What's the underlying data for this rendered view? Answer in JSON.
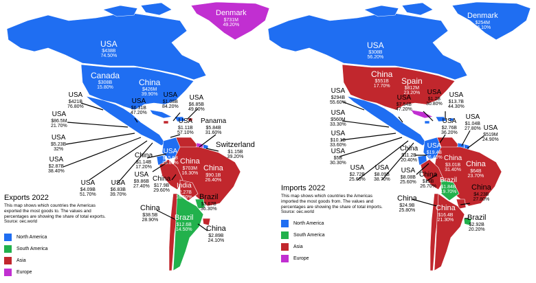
{
  "colors": {
    "north_america": "#1f6ef2",
    "south_america": "#22b14c",
    "asia": "#c1272d",
    "europe": "#c12fd1"
  },
  "exports": {
    "title": "Exports 2022",
    "description": "This map shows which countries the Americas exported the most goods to. The values and percentages are showing the share of total exports.",
    "source": "Source: oec.world",
    "labels": [
      {
        "name": "Denmark",
        "value": "$731M",
        "pct": "49.20%"
      },
      {
        "name": "USA",
        "value": "$438B",
        "pct": "74.50%"
      },
      {
        "name": "Canada",
        "value": "$308B",
        "pct": "15.80%"
      },
      {
        "name": "China",
        "value": "$426M",
        "pct": "39.90%"
      },
      {
        "name": "USA",
        "value": "$421B",
        "pct": "76.80%"
      },
      {
        "name": "USA",
        "value": "$86.5M",
        "pct": "21.70%"
      },
      {
        "name": "USA",
        "value": "$5.23B",
        "pct": "32%"
      },
      {
        "name": "USA",
        "value": "$2.87B",
        "pct": "38.40%"
      },
      {
        "name": "USA",
        "value": "$4.09B",
        "pct": "51.70%"
      },
      {
        "name": "USA",
        "value": "$6.83B",
        "pct": "39.70%"
      },
      {
        "name": "USA",
        "value": "$6.31B",
        "pct": "47.20%"
      },
      {
        "name": "USA",
        "value": "$1.08B",
        "pct": "84.20%"
      },
      {
        "name": "USA",
        "value": "$6.85B",
        "pct": "49.60%"
      },
      {
        "name": "USA",
        "value": "$1.11B",
        "pct": "57.10%"
      },
      {
        "name": "Panama",
        "value": "$5.84B",
        "pct": "31.60%"
      },
      {
        "name": "Switzerland",
        "value": "$1.15B",
        "pct": "39.20%"
      },
      {
        "name": "China",
        "value": "$1.14B",
        "pct": "17.20%"
      },
      {
        "name": "USA",
        "value": "$15.6B",
        "pct": "25.80%"
      },
      {
        "name": "China",
        "value": "$703M",
        "pct": "16.30%"
      },
      {
        "name": "China",
        "value": "$90.1B",
        "pct": "26.40%"
      },
      {
        "name": "USA",
        "value": "$9.86B",
        "pct": "27.40%"
      },
      {
        "name": "China",
        "value": "$17.9B",
        "pct": "29.60%"
      },
      {
        "name": "India",
        "value": "$2.27B",
        "pct": "16.50%"
      },
      {
        "name": "Brazil",
        "value": "$3.67B",
        "pct": "36.30%"
      },
      {
        "name": "China",
        "value": "$38.5B",
        "pct": "28.90%"
      },
      {
        "name": "Brazil",
        "value": "$12.6B",
        "pct": "14.50%"
      },
      {
        "name": "China",
        "value": "$2.89B",
        "pct": "24.10%"
      }
    ]
  },
  "imports": {
    "title": "Imports 2022",
    "description": "This map shows which countries the Americas imported the most goods from. The values and percentages are showing the share of total imports.",
    "source": "Source: oec.world",
    "labels": [
      {
        "name": "Denmark",
        "value": "$254M",
        "pct": "56.10%"
      },
      {
        "name": "USA",
        "value": "$308B",
        "pct": "56.20%"
      },
      {
        "name": "China",
        "value": "$551B",
        "pct": "17.70%"
      },
      {
        "name": "Spain",
        "value": "$812M",
        "pct": "23.20%"
      },
      {
        "name": "USA",
        "value": "$294B",
        "pct": "55.60%"
      },
      {
        "name": "USA",
        "value": "$560M",
        "pct": "33.30%"
      },
      {
        "name": "USA",
        "value": "$10.1B",
        "pct": "33.60%"
      },
      {
        "name": "USA",
        "value": "$5B",
        "pct": "30.30%"
      },
      {
        "name": "USA",
        "value": "$2.72B",
        "pct": "25.60%"
      },
      {
        "name": "USA",
        "value": "$8.09B",
        "pct": "38.70%"
      },
      {
        "name": "USA",
        "value": "$7.54B",
        "pct": "47.20%"
      },
      {
        "name": "USA",
        "value": "$1.2B",
        "pct": "30.80%"
      },
      {
        "name": "USA",
        "value": "$13.7B",
        "pct": "44.30%"
      },
      {
        "name": "USA",
        "value": "$2.76B",
        "pct": "36.20%"
      },
      {
        "name": "USA",
        "value": "$1.04B",
        "pct": "27.80%"
      },
      {
        "name": "USA",
        "value": "$519M",
        "pct": "24.90%"
      },
      {
        "name": "China",
        "value": "$11.2B",
        "pct": "20.40%"
      },
      {
        "name": "USA",
        "value": "$19.4B",
        "pct": "26.40%"
      },
      {
        "name": "China",
        "value": "$3.01B",
        "pct": "31.40%"
      },
      {
        "name": "China",
        "value": "$64B",
        "pct": "23.70%"
      },
      {
        "name": "USA",
        "value": "$8.08B",
        "pct": "25.60%"
      },
      {
        "name": "China",
        "value": "$15B",
        "pct": "26.70%"
      },
      {
        "name": "Brazil",
        "value": "$1.84B",
        "pct": "19.70%"
      },
      {
        "name": "China",
        "value": "$4.23B",
        "pct": "27.80%"
      },
      {
        "name": "China",
        "value": "$24.9B",
        "pct": "25.80%"
      },
      {
        "name": "China",
        "value": "$16.4B",
        "pct": "21.30%"
      },
      {
        "name": "Brazil",
        "value": "$2.92B",
        "pct": "20.20%"
      }
    ]
  },
  "legend": [
    {
      "label": "North America",
      "color_key": "north_america"
    },
    {
      "label": "South America",
      "color_key": "south_america"
    },
    {
      "label": "Asia",
      "color_key": "asia"
    },
    {
      "label": "Europe",
      "color_key": "europe"
    }
  ]
}
